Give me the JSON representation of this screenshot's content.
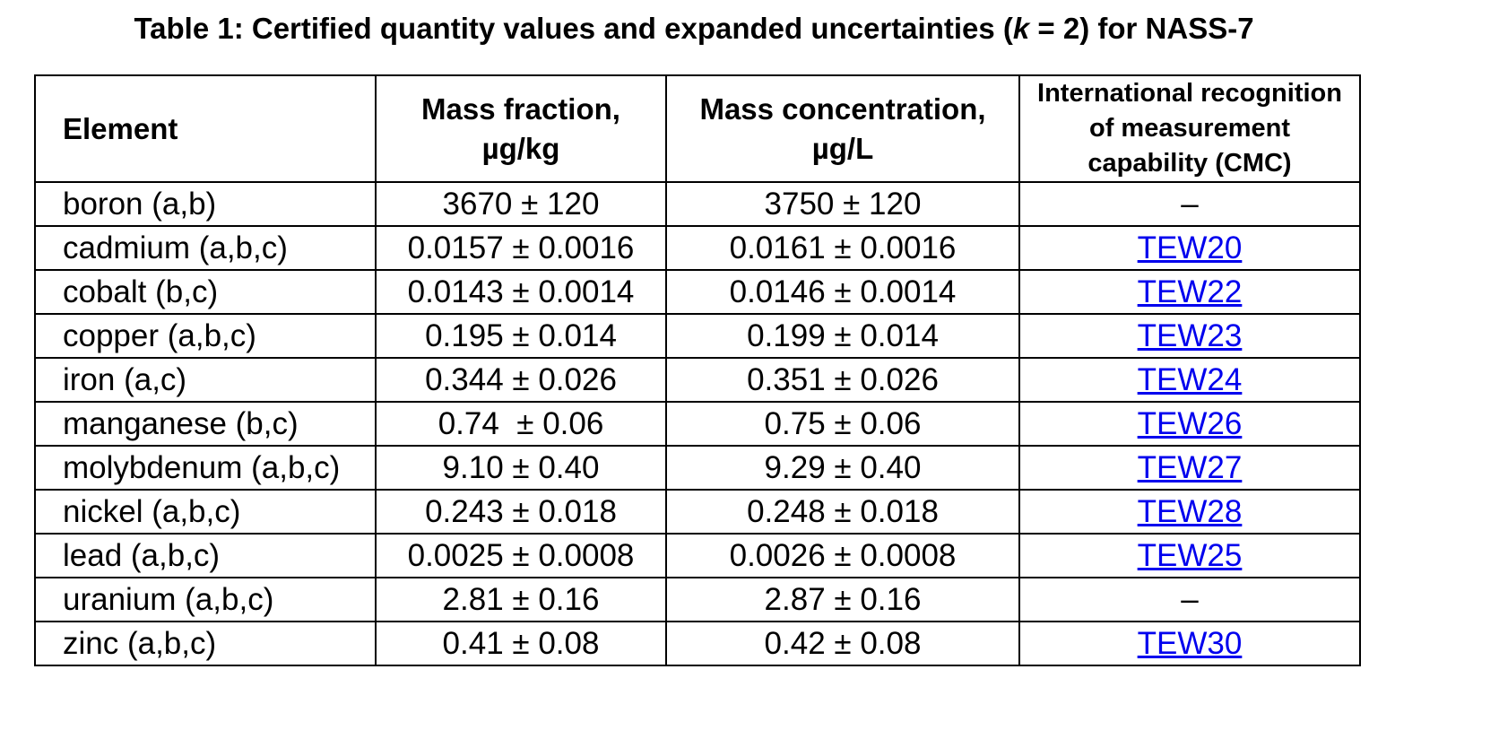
{
  "caption": {
    "prefix": "Table 1: Certified quantity values and expanded uncertainties (",
    "k": "k",
    "suffix": " = 2) for NASS-7"
  },
  "headers": {
    "element": "Element",
    "mass_fraction": [
      "Mass fraction,",
      "µg/kg"
    ],
    "mass_concentration": [
      "Mass concentration,",
      "µg/L"
    ],
    "cmc": [
      "International recognition",
      "of measurement",
      "capability (CMC)"
    ]
  },
  "rows": [
    {
      "element": "boron (a,b)",
      "mass_fraction": "3670 ± 120",
      "mass_concentration": "3750 ± 120",
      "cmc": "–",
      "cmc_is_link": false
    },
    {
      "element": "cadmium (a,b,c)",
      "mass_fraction": "0.0157 ± 0.0016",
      "mass_concentration": "0.0161 ± 0.0016",
      "cmc": "TEW20",
      "cmc_is_link": true
    },
    {
      "element": "cobalt (b,c)",
      "mass_fraction": "0.0143 ± 0.0014",
      "mass_concentration": "0.0146 ± 0.0014",
      "cmc": "TEW22",
      "cmc_is_link": true
    },
    {
      "element": "copper (a,b,c)",
      "mass_fraction": "0.195 ± 0.014",
      "mass_concentration": "0.199 ± 0.014",
      "cmc": "TEW23",
      "cmc_is_link": true
    },
    {
      "element": "iron (a,c)",
      "mass_fraction": "0.344 ± 0.026",
      "mass_concentration": "0.351 ± 0.026",
      "cmc": "TEW24",
      "cmc_is_link": true
    },
    {
      "element": "manganese (b,c)",
      "mass_fraction": "0.74  ± 0.06",
      "mass_concentration": "0.75 ± 0.06",
      "cmc": "TEW26",
      "cmc_is_link": true
    },
    {
      "element": "molybdenum (a,b,c)",
      "mass_fraction": "9.10 ± 0.40",
      "mass_concentration": "9.29 ± 0.40",
      "cmc": "TEW27",
      "cmc_is_link": true
    },
    {
      "element": "nickel (a,b,c)",
      "mass_fraction": "0.243 ± 0.018",
      "mass_concentration": "0.248 ± 0.018",
      "cmc": "TEW28",
      "cmc_is_link": true
    },
    {
      "element": "lead (a,b,c)",
      "mass_fraction": "0.0025 ± 0.0008",
      "mass_concentration": "0.0026 ± 0.0008",
      "cmc": "TEW25",
      "cmc_is_link": true
    },
    {
      "element": "uranium (a,b,c)",
      "mass_fraction": "2.81 ± 0.16",
      "mass_concentration": "2.87 ± 0.16",
      "cmc": "–",
      "cmc_is_link": false
    },
    {
      "element": "zinc (a,b,c)",
      "mass_fraction": "0.41 ± 0.08",
      "mass_concentration": "0.42 ± 0.08",
      "cmc": "TEW30",
      "cmc_is_link": true
    }
  ],
  "colors": {
    "link": "#0000ee",
    "border": "#000000"
  }
}
